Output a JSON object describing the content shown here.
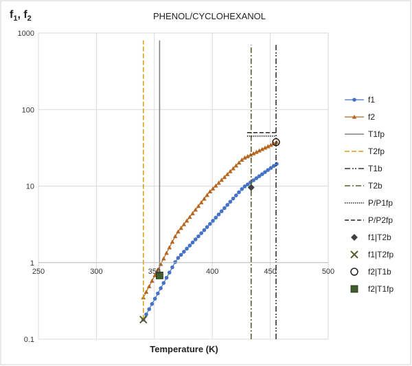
{
  "chart_data": {
    "type": "line",
    "title": "PHENOL/CYCLOHEXANOL",
    "ylabel": "f",
    "ylabel_subscripts": [
      "1",
      "2"
    ],
    "ylabel_separator": ", ",
    "xlabel": "Temperature (K)",
    "xlim": [
      250,
      500
    ],
    "ylim": [
      0.1,
      1000
    ],
    "yscale": "log",
    "x_ticks": [
      250,
      300,
      350,
      400,
      450,
      500
    ],
    "x_tick_labels": [
      "250",
      "300",
      "350",
      "400",
      "450",
      "500"
    ],
    "y_ticks": [
      0.1,
      1,
      10,
      100,
      1000
    ],
    "y_tick_labels": [
      "0.1",
      "1",
      "10",
      "100",
      "1000"
    ],
    "grid": true,
    "legend_position": "right",
    "series": [
      {
        "name": "f1",
        "kind": "line-marker",
        "marker": "circle",
        "color": "#4472c4",
        "x_range": [
          340.5,
          455.5
        ],
        "y_log_fit": [
          0.18,
          1.1,
          3.2,
          9.6,
          19.5
        ]
      },
      {
        "name": "f2",
        "kind": "line-marker",
        "marker": "triangle",
        "color": "#b5651d",
        "x_range": [
          340.5,
          455.5
        ],
        "y_log_fit": [
          0.35,
          2.4,
          8.5,
          23.0,
          37.5
        ]
      },
      {
        "name": "T1fp",
        "kind": "vline",
        "x": 354.5,
        "y_range": [
          0.68,
          800
        ],
        "color": "#808080",
        "dash": "solid"
      },
      {
        "name": "T2fp",
        "kind": "vline",
        "x": 340.5,
        "y_range": [
          0.18,
          800
        ],
        "color": "#d4a017",
        "dash": "long"
      },
      {
        "name": "T1b",
        "kind": "vline",
        "x": 455.0,
        "y_range": [
          0.1,
          700
        ],
        "color": "#333333",
        "dash": "dash-dot-dot"
      },
      {
        "name": "T2b",
        "kind": "vline",
        "x": 433.5,
        "y_range": [
          0.1,
          700
        ],
        "color": "#5b5b2b",
        "dash": "dash-dot"
      },
      {
        "name": "P/P1fp",
        "kind": "hline",
        "y": 45,
        "x_range": [
          430,
          455
        ],
        "color": "#222222",
        "dash": "dotted"
      },
      {
        "name": "P/P2fp",
        "kind": "hline",
        "y": 50,
        "x_range": [
          430,
          455
        ],
        "color": "#222222",
        "dash": "dashed"
      },
      {
        "name": "f1|T2b",
        "kind": "point",
        "x": 433.5,
        "y": 9.6,
        "marker": "diamond",
        "color": "#404040"
      },
      {
        "name": "f1|T2fp",
        "kind": "point",
        "x": 340.5,
        "y": 0.18,
        "marker": "x",
        "color": "#5b5b2b"
      },
      {
        "name": "f2|T1b",
        "kind": "point",
        "x": 455.0,
        "y": 37.5,
        "marker": "open-circle",
        "color": "#222222"
      },
      {
        "name": "f2|T1fp",
        "kind": "point",
        "x": 354.5,
        "y": 0.68,
        "marker": "square",
        "color": "#3e5e2e"
      }
    ]
  }
}
